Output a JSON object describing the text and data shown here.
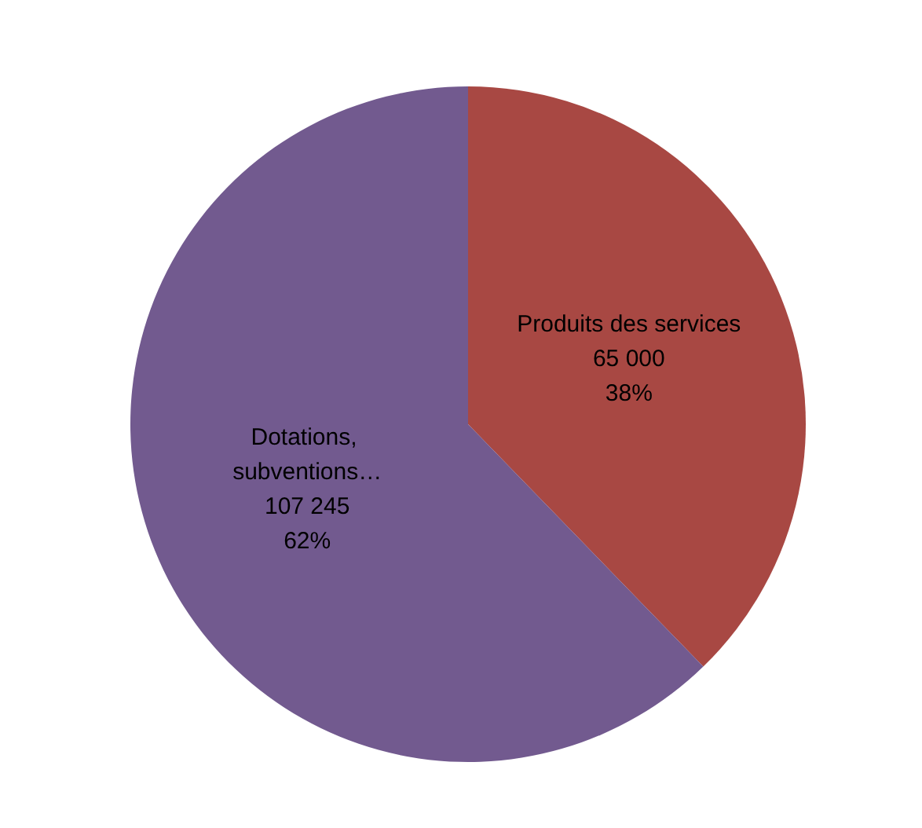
{
  "chart_data": {
    "type": "pie",
    "categories": [
      "Produits des services",
      "Dotations, subventions…"
    ],
    "values": [
      65000,
      107245
    ],
    "colors": [
      "#a84843",
      "#725a8f"
    ],
    "value_labels": [
      "65 000\n38%",
      "107 245\n62%"
    ],
    "legend": false
  }
}
